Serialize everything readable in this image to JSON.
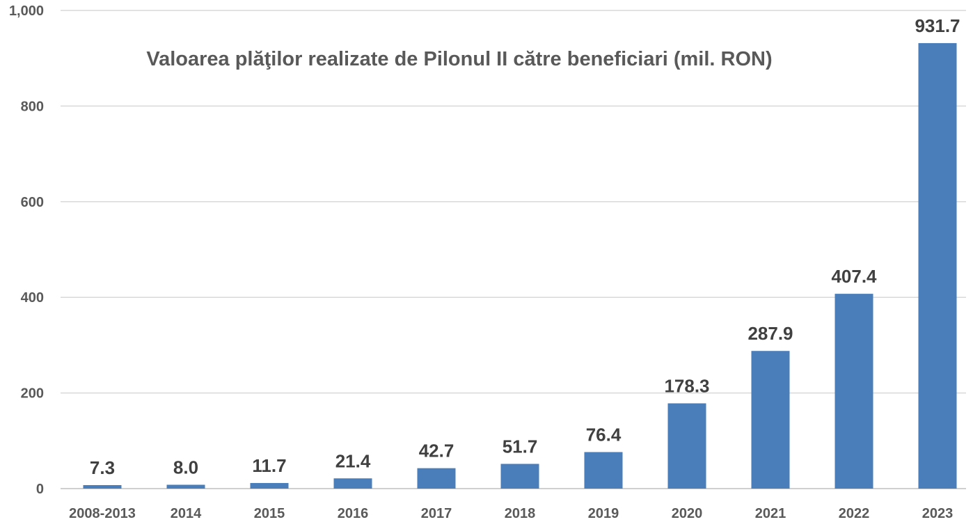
{
  "chart_data": {
    "type": "bar",
    "title": "Valoarea plăţilor realizate de Pilonul II către beneficiari (mil. RON)",
    "xlabel": "",
    "ylabel": "",
    "categories": [
      "2008-2013",
      "2014",
      "2015",
      "2016",
      "2017",
      "2018",
      "2019",
      "2020",
      "2021",
      "2022",
      "2023"
    ],
    "values": [
      7.3,
      8.0,
      11.7,
      21.4,
      42.7,
      51.7,
      76.4,
      178.3,
      287.9,
      407.4,
      931.7
    ],
    "data_labels": [
      "7.3",
      "8.0",
      "11.7",
      "21.4",
      "42.7",
      "51.7",
      "76.4",
      "178.3",
      "287.9",
      "407.4",
      "931.7"
    ],
    "ylim": [
      0,
      1000
    ],
    "yticks": [
      0,
      200,
      400,
      600,
      800,
      1000
    ],
    "ytick_labels": [
      "0",
      "200",
      "400",
      "600",
      "800",
      "1,000"
    ],
    "grid": true,
    "legend": "none",
    "colors": {
      "bar": "#4a7ebb",
      "grid": "#d9d9d9",
      "tick_text": "#595959",
      "label_text": "#404040",
      "title_text": "#595959"
    }
  }
}
